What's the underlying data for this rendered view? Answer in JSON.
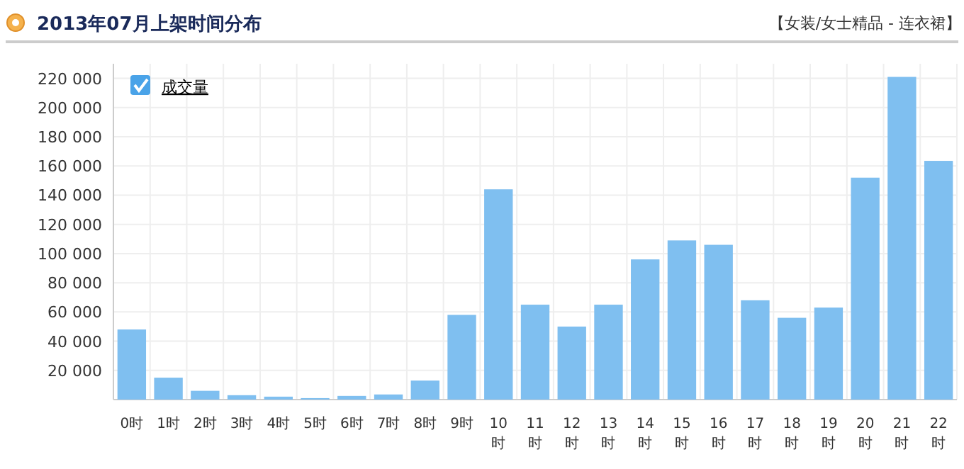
{
  "chart_data": {
    "type": "bar",
    "title": "2013年07月上架时间分布",
    "subtitle": "【女装/女士精品 - 连衣裙】",
    "categories": [
      "0时",
      "1时",
      "2时",
      "3时",
      "4时",
      "5时",
      "6时",
      "7时",
      "8时",
      "9时",
      "10时",
      "11时",
      "12时",
      "13时",
      "14时",
      "15时",
      "16时",
      "17时",
      "18时",
      "19时",
      "20时",
      "21时",
      "22时"
    ],
    "series": [
      {
        "name": "成交量",
        "color": "#7fbff0",
        "values": [
          48000,
          15000,
          6000,
          3000,
          2000,
          1000,
          2500,
          3500,
          13000,
          58000,
          144000,
          65000,
          50000,
          65000,
          96000,
          109000,
          106000,
          68000,
          56000,
          63000,
          152000,
          221000,
          163500
        ]
      }
    ],
    "ylim": [
      0,
      230000
    ],
    "yticks": [
      {
        "value": 20000,
        "label": "20 000"
      },
      {
        "value": 40000,
        "label": "40 000"
      },
      {
        "value": 60000,
        "label": "60 000"
      },
      {
        "value": 80000,
        "label": "80 000"
      },
      {
        "value": 100000,
        "label": "100 000"
      },
      {
        "value": 120000,
        "label": "120 000"
      },
      {
        "value": 140000,
        "label": "140 000"
      },
      {
        "value": 160000,
        "label": "160 000"
      },
      {
        "value": 180000,
        "label": "180 000"
      },
      {
        "value": 200000,
        "label": "200 000"
      },
      {
        "value": 220000,
        "label": "220 000"
      }
    ],
    "grid": true,
    "legend": "top left"
  }
}
